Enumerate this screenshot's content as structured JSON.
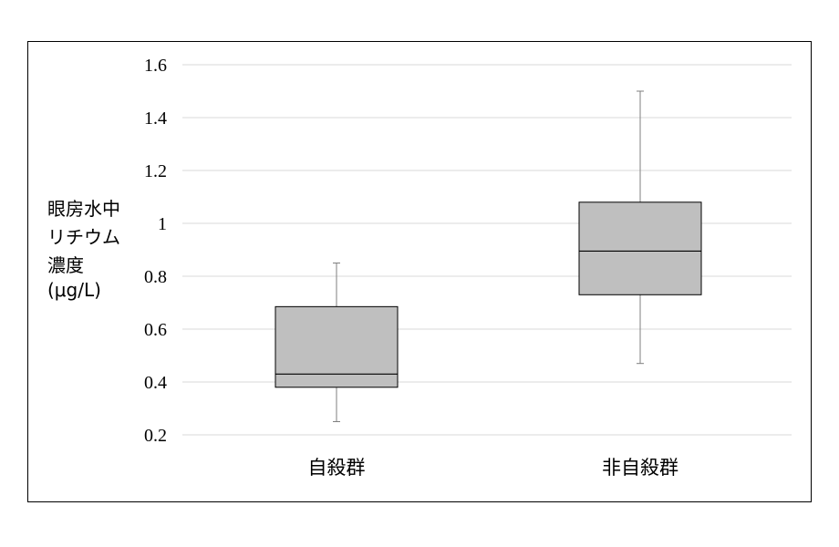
{
  "chart_data": {
    "type": "boxplot",
    "ylabel_lines": [
      "眼房水中",
      "リチウム",
      "濃度",
      "(μg/L)"
    ],
    "ylim": [
      0.2,
      1.6
    ],
    "yticks": [
      "0.2",
      "0.4",
      "0.6",
      "0.8",
      "1",
      "1.2",
      "1.4",
      "1.6"
    ],
    "grid": true,
    "categories": [
      "自殺群",
      "非自殺群"
    ],
    "boxes": [
      {
        "category": "自殺群",
        "min": 0.25,
        "q1": 0.38,
        "median": 0.43,
        "q3": 0.685,
        "max": 0.85
      },
      {
        "category": "非自殺群",
        "min": 0.47,
        "q1": 0.73,
        "median": 0.895,
        "q3": 1.08,
        "max": 1.5
      }
    ],
    "colors": {
      "box_fill": "#bfbfbf",
      "box_stroke": "#000000",
      "grid": "#d9d9d9",
      "whisker": "#7f7f7f"
    }
  }
}
